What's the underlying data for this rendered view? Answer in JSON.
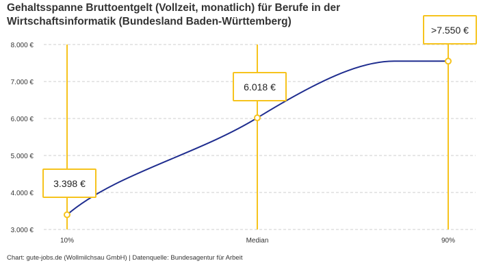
{
  "chart_data": {
    "type": "line",
    "title": "Gehaltsspanne Bruttoentgelt (Vollzeit, monatlich) für Berufe in der Wirtschaftsinformatik (Bundesland Baden-Württemberg)",
    "categories": [
      "10%",
      "Median",
      "90%"
    ],
    "values": [
      3398,
      6018,
      7550
    ],
    "data_labels": [
      "3.398 €",
      "6.018 €",
      ">7.550 €"
    ],
    "y_ticks": [
      3000,
      4000,
      5000,
      6000,
      7000,
      8000
    ],
    "y_tick_labels": [
      "3.000 €",
      "4.000 €",
      "5.000 €",
      "6.000 €",
      "7.000 €",
      "8.000 €"
    ],
    "ylim": [
      3000,
      8000
    ],
    "grid": "horizontal dashed",
    "legend": "none",
    "xlabel": "",
    "ylabel": "",
    "colors": {
      "line": "#1f2d8f",
      "marker": "#f6c31c",
      "grid": "#cccccc"
    }
  },
  "footer": "Chart: gute-jobs.de (Wollmilchsau GmbH) | Datenquelle: Bundesagentur für Arbeit"
}
